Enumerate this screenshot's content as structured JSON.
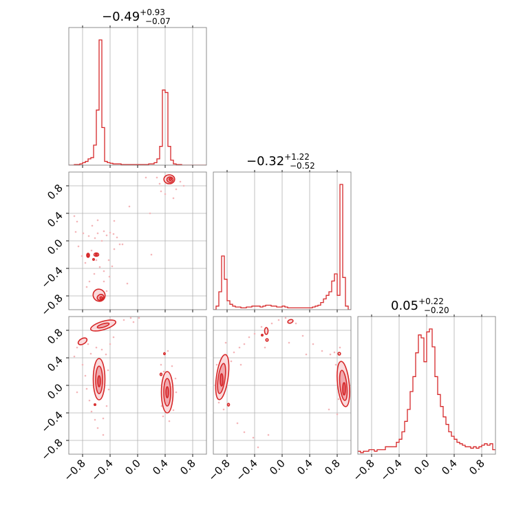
{
  "chart_data": {
    "type": "corner",
    "parameters": 3,
    "color": "#d62728",
    "grid": true,
    "ticks": {
      "values": [
        -0.8,
        -0.4,
        0.0,
        0.4,
        0.8
      ],
      "labels": [
        "−0.8",
        "−0.4",
        "0.0",
        "0.4",
        "0.8"
      ]
    },
    "titles": [
      {
        "median": "−0.49",
        "upper": "+0.93",
        "lower": "−0.07"
      },
      {
        "median": "−0.32",
        "upper": "+1.22",
        "lower": "−0.52"
      },
      {
        "median": "0.05",
        "upper": "+0.22",
        "lower": "−0.20"
      }
    ],
    "marginals": [
      {
        "name": "p0",
        "x": [
          -0.98,
          -0.94,
          -0.9,
          -0.86,
          -0.82,
          -0.78,
          -0.74,
          -0.7,
          -0.66,
          -0.62,
          -0.58,
          -0.54,
          -0.5,
          -0.46,
          -0.42,
          -0.38,
          -0.34,
          -0.3,
          -0.26,
          -0.22,
          -0.18,
          -0.14,
          -0.1,
          -0.06,
          -0.02,
          0.02,
          0.06,
          0.1,
          0.14,
          0.18,
          0.22,
          0.26,
          0.3,
          0.34,
          0.38,
          0.42,
          0.46,
          0.5,
          0.54,
          0.58,
          0.62,
          0.66,
          0.7,
          0.74,
          0.78,
          0.82,
          0.86,
          0.9,
          0.94,
          0.98
        ],
        "values": [
          0,
          0,
          0.005,
          0.005,
          0.01,
          0.02,
          0.03,
          0.05,
          0.06,
          0.16,
          0.44,
          1.0,
          0.3,
          0.03,
          0.02,
          0.015,
          0.01,
          0.01,
          0.01,
          0.005,
          0.005,
          0.005,
          0.005,
          0.005,
          0.005,
          0.005,
          0.005,
          0.005,
          0.005,
          0.01,
          0.01,
          0.02,
          0.05,
          0.15,
          0.6,
          0.58,
          0.15,
          0.04,
          0.01,
          0.005,
          0.005,
          0,
          0,
          0,
          0,
          0,
          0,
          0,
          0,
          0
        ]
      },
      {
        "name": "p1",
        "x": [
          -0.98,
          -0.94,
          -0.9,
          -0.86,
          -0.82,
          -0.78,
          -0.74,
          -0.7,
          -0.66,
          -0.62,
          -0.58,
          -0.54,
          -0.5,
          -0.46,
          -0.42,
          -0.38,
          -0.34,
          -0.3,
          -0.26,
          -0.22,
          -0.18,
          -0.14,
          -0.1,
          -0.06,
          -0.02,
          0.02,
          0.06,
          0.1,
          0.14,
          0.18,
          0.22,
          0.26,
          0.3,
          0.34,
          0.38,
          0.42,
          0.46,
          0.5,
          0.54,
          0.58,
          0.62,
          0.66,
          0.7,
          0.74,
          0.78,
          0.82,
          0.86,
          0.9,
          0.94,
          0.98
        ],
        "values": [
          0,
          0.02,
          0.1,
          0.3,
          0.17,
          0.05,
          0.03,
          0.02,
          0.015,
          0.015,
          0.01,
          0.01,
          0.015,
          0.015,
          0.02,
          0.02,
          0.02,
          0.015,
          0.02,
          0.025,
          0.025,
          0.02,
          0.02,
          0.015,
          0.015,
          0.02,
          0.015,
          0.01,
          0.01,
          0.01,
          0.01,
          0.01,
          0.01,
          0.01,
          0.01,
          0.01,
          0.015,
          0.02,
          0.025,
          0.04,
          0.06,
          0.08,
          0.1,
          0.16,
          0.2,
          0.08,
          0.7,
          0.18,
          0.02,
          0
        ]
      },
      {
        "name": "p2",
        "x": [
          -0.98,
          -0.94,
          -0.9,
          -0.86,
          -0.82,
          -0.78,
          -0.74,
          -0.7,
          -0.66,
          -0.62,
          -0.58,
          -0.54,
          -0.5,
          -0.46,
          -0.42,
          -0.38,
          -0.34,
          -0.3,
          -0.26,
          -0.22,
          -0.18,
          -0.14,
          -0.1,
          -0.06,
          -0.02,
          0.02,
          0.06,
          0.1,
          0.14,
          0.18,
          0.22,
          0.26,
          0.3,
          0.34,
          0.38,
          0.42,
          0.46,
          0.5,
          0.54,
          0.58,
          0.62,
          0.66,
          0.7,
          0.74,
          0.78,
          0.82,
          0.86,
          0.9,
          0.94,
          0.98
        ],
        "values": [
          0.02,
          0.01,
          0.02,
          0.02,
          0.03,
          0.03,
          0.02,
          0.03,
          0.03,
          0.03,
          0.05,
          0.05,
          0.05,
          0.05,
          0.08,
          0.1,
          0.15,
          0.22,
          0.3,
          0.42,
          0.52,
          0.68,
          0.8,
          0.78,
          0.62,
          0.82,
          0.84,
          0.72,
          0.52,
          0.4,
          0.32,
          0.25,
          0.2,
          0.15,
          0.12,
          0.1,
          0.08,
          0.07,
          0.06,
          0.05,
          0.05,
          0.04,
          0.05,
          0.04,
          0.05,
          0.06,
          0.07,
          0.06,
          0.07,
          0.03
        ]
      }
    ],
    "pairs": [
      {
        "name": "p1 vs p0",
        "clusters": [
          {
            "x": 0.47,
            "y": 0.88,
            "sx": 0.065,
            "sy": 0.045,
            "w": 0.25
          },
          {
            "x": -0.55,
            "y": -0.18,
            "sx": 0.05,
            "sy": 0.04,
            "w": 0.2
          },
          {
            "x": -0.57,
            "y": -0.8,
            "sx": 0.05,
            "sy": 0.05,
            "w": 0.3
          }
        ],
        "contour_colors": [
          "#fadadc",
          "#f1a9ae",
          "#e2646c"
        ],
        "scatter_points": [
          [
            -0.92,
            0.36
          ],
          [
            -0.88,
            0.28
          ],
          [
            -0.79,
            0.11
          ],
          [
            -0.71,
            0.07
          ],
          [
            -0.62,
            0.04
          ],
          [
            -0.58,
            0.11
          ],
          [
            -0.49,
            0.14
          ],
          [
            -0.45,
            0.08
          ],
          [
            -0.4,
            0.12
          ],
          [
            -0.35,
            0.1
          ],
          [
            -0.3,
            0.05
          ],
          [
            -0.26,
            -0.05
          ],
          [
            -0.34,
            -0.12
          ],
          [
            -0.42,
            -0.28
          ],
          [
            -0.37,
            -0.37
          ],
          [
            -0.49,
            -0.44
          ],
          [
            -0.55,
            -0.38
          ],
          [
            -0.63,
            -0.48
          ],
          [
            -0.7,
            -0.59
          ],
          [
            -0.74,
            -0.67
          ],
          [
            -0.76,
            -0.32
          ],
          [
            -0.81,
            -0.22
          ],
          [
            -0.67,
            -0.14
          ],
          [
            -0.6,
            -0.28
          ],
          [
            -0.52,
            0.0
          ],
          [
            -0.49,
            -0.59
          ],
          [
            -0.45,
            -0.73
          ],
          [
            -0.41,
            -0.52
          ],
          [
            0.28,
            0.92
          ],
          [
            0.32,
            0.83
          ],
          [
            0.34,
            0.72
          ],
          [
            0.56,
            0.75
          ],
          [
            0.62,
            0.86
          ],
          [
            0.67,
            0.8
          ],
          [
            0.4,
            0.68
          ],
          [
            0.52,
            0.62
          ],
          [
            -0.9,
            0.13
          ],
          [
            -0.86,
            -0.08
          ],
          [
            -0.34,
            0.29
          ],
          [
            -0.22,
            -0.05
          ],
          [
            -0.58,
            0.3
          ],
          [
            -0.66,
            0.22
          ],
          [
            0.12,
            0.92
          ],
          [
            0.18,
            0.4
          ],
          [
            -0.12,
            0.5
          ],
          [
            0.2,
            -0.2
          ],
          [
            -0.15,
            -0.62
          ]
        ]
      },
      {
        "name": "p2 vs p0",
        "clusters": [
          {
            "x": -0.55,
            "y": 0.1,
            "sx": 0.045,
            "sy": 0.14,
            "w": 0.3
          },
          {
            "x": 0.42,
            "y": -0.08,
            "sx": 0.045,
            "sy": 0.15,
            "w": 0.3
          },
          {
            "x": -0.62,
            "y": 0.78,
            "sx": 0.09,
            "sy": 0.05,
            "w": 0.12
          },
          {
            "x": -0.38,
            "y": 0.9,
            "sx": 0.08,
            "sy": 0.04,
            "w": 0.12
          }
        ],
        "contour_colors": [
          "#fadadc",
          "#f1a9ae",
          "#e2646c"
        ],
        "scatter_points": [
          [
            -0.92,
            0.42
          ],
          [
            -0.88,
            0.55
          ],
          [
            -0.8,
            0.3
          ],
          [
            -0.76,
            0.14
          ],
          [
            -0.74,
            -0.05
          ],
          [
            -0.7,
            -0.22
          ],
          [
            -0.67,
            -0.38
          ],
          [
            -0.62,
            -0.5
          ],
          [
            -0.58,
            -0.62
          ],
          [
            -0.5,
            -0.48
          ],
          [
            -0.45,
            -0.3
          ],
          [
            -0.42,
            -0.06
          ],
          [
            -0.43,
            0.22
          ],
          [
            -0.46,
            0.45
          ],
          [
            -0.52,
            0.52
          ],
          [
            -0.6,
            0.55
          ],
          [
            -0.68,
            0.46
          ],
          [
            -0.72,
            0.6
          ],
          [
            -0.84,
            0.66
          ],
          [
            -0.5,
            -0.72
          ],
          [
            0.34,
            0.3
          ],
          [
            0.36,
            0.05
          ],
          [
            0.35,
            -0.3
          ],
          [
            0.37,
            -0.45
          ],
          [
            0.46,
            -0.52
          ],
          [
            0.52,
            -0.36
          ],
          [
            0.55,
            0.1
          ],
          [
            0.5,
            0.28
          ],
          [
            0.44,
            0.5
          ],
          [
            0.48,
            -0.2
          ],
          [
            0.56,
            -0.1
          ],
          [
            0.38,
            0.2
          ],
          [
            -0.1,
            0.98
          ],
          [
            -0.2,
            0.95
          ],
          [
            -0.06,
            0.92
          ],
          [
            0.02,
            0.98
          ],
          [
            -0.35,
            0.7
          ],
          [
            -0.4,
            0.6
          ],
          [
            -0.6,
            0.85
          ],
          [
            -0.88,
            -0.1
          ]
        ]
      },
      {
        "name": "p2 vs p1",
        "clusters": [
          {
            "x": -0.88,
            "y": 0.1,
            "sx": 0.045,
            "sy": 0.17,
            "w": 0.3
          },
          {
            "x": 0.88,
            "y": 0.02,
            "sx": 0.045,
            "sy": 0.17,
            "w": 0.3
          },
          {
            "x": -0.24,
            "y": 0.77,
            "sx": 0.03,
            "sy": 0.06,
            "w": 0.06
          },
          {
            "x": 0.12,
            "y": 0.95,
            "sx": 0.04,
            "sy": 0.03,
            "w": 0.05
          }
        ],
        "contour_colors": [
          "#fadadc",
          "#f1a9ae",
          "#e2646c"
        ],
        "scatter_points": [
          [
            -0.95,
            0.3
          ],
          [
            -0.92,
            -0.25
          ],
          [
            -0.85,
            -0.35
          ],
          [
            -0.78,
            -0.3
          ],
          [
            -0.74,
            0.35
          ],
          [
            -0.7,
            0.48
          ],
          [
            -0.62,
            0.55
          ],
          [
            -0.55,
            0.6
          ],
          [
            -0.48,
            0.7
          ],
          [
            -0.4,
            0.75
          ],
          [
            -0.3,
            0.85
          ],
          [
            -0.15,
            0.9
          ],
          [
            -0.05,
            0.95
          ],
          [
            0.05,
            0.98
          ],
          [
            0.2,
            0.9
          ],
          [
            0.3,
            0.72
          ],
          [
            0.45,
            0.6
          ],
          [
            0.58,
            0.5
          ],
          [
            0.7,
            0.45
          ],
          [
            0.78,
            0.3
          ],
          [
            0.82,
            -0.2
          ],
          [
            0.8,
            -0.42
          ],
          [
            0.76,
            0.48
          ],
          [
            0.84,
            0.55
          ],
          [
            -0.65,
            -0.55
          ],
          [
            -0.55,
            -0.68
          ],
          [
            -0.42,
            -0.76
          ],
          [
            -0.35,
            -0.9
          ],
          [
            -0.2,
            -0.72
          ],
          [
            -0.6,
            0.3
          ],
          [
            0.1,
            0.62
          ],
          [
            -0.25,
            0.55
          ],
          [
            0.35,
            0.45
          ],
          [
            -0.82,
            0.62
          ],
          [
            0.68,
            -0.35
          ]
        ]
      }
    ]
  }
}
